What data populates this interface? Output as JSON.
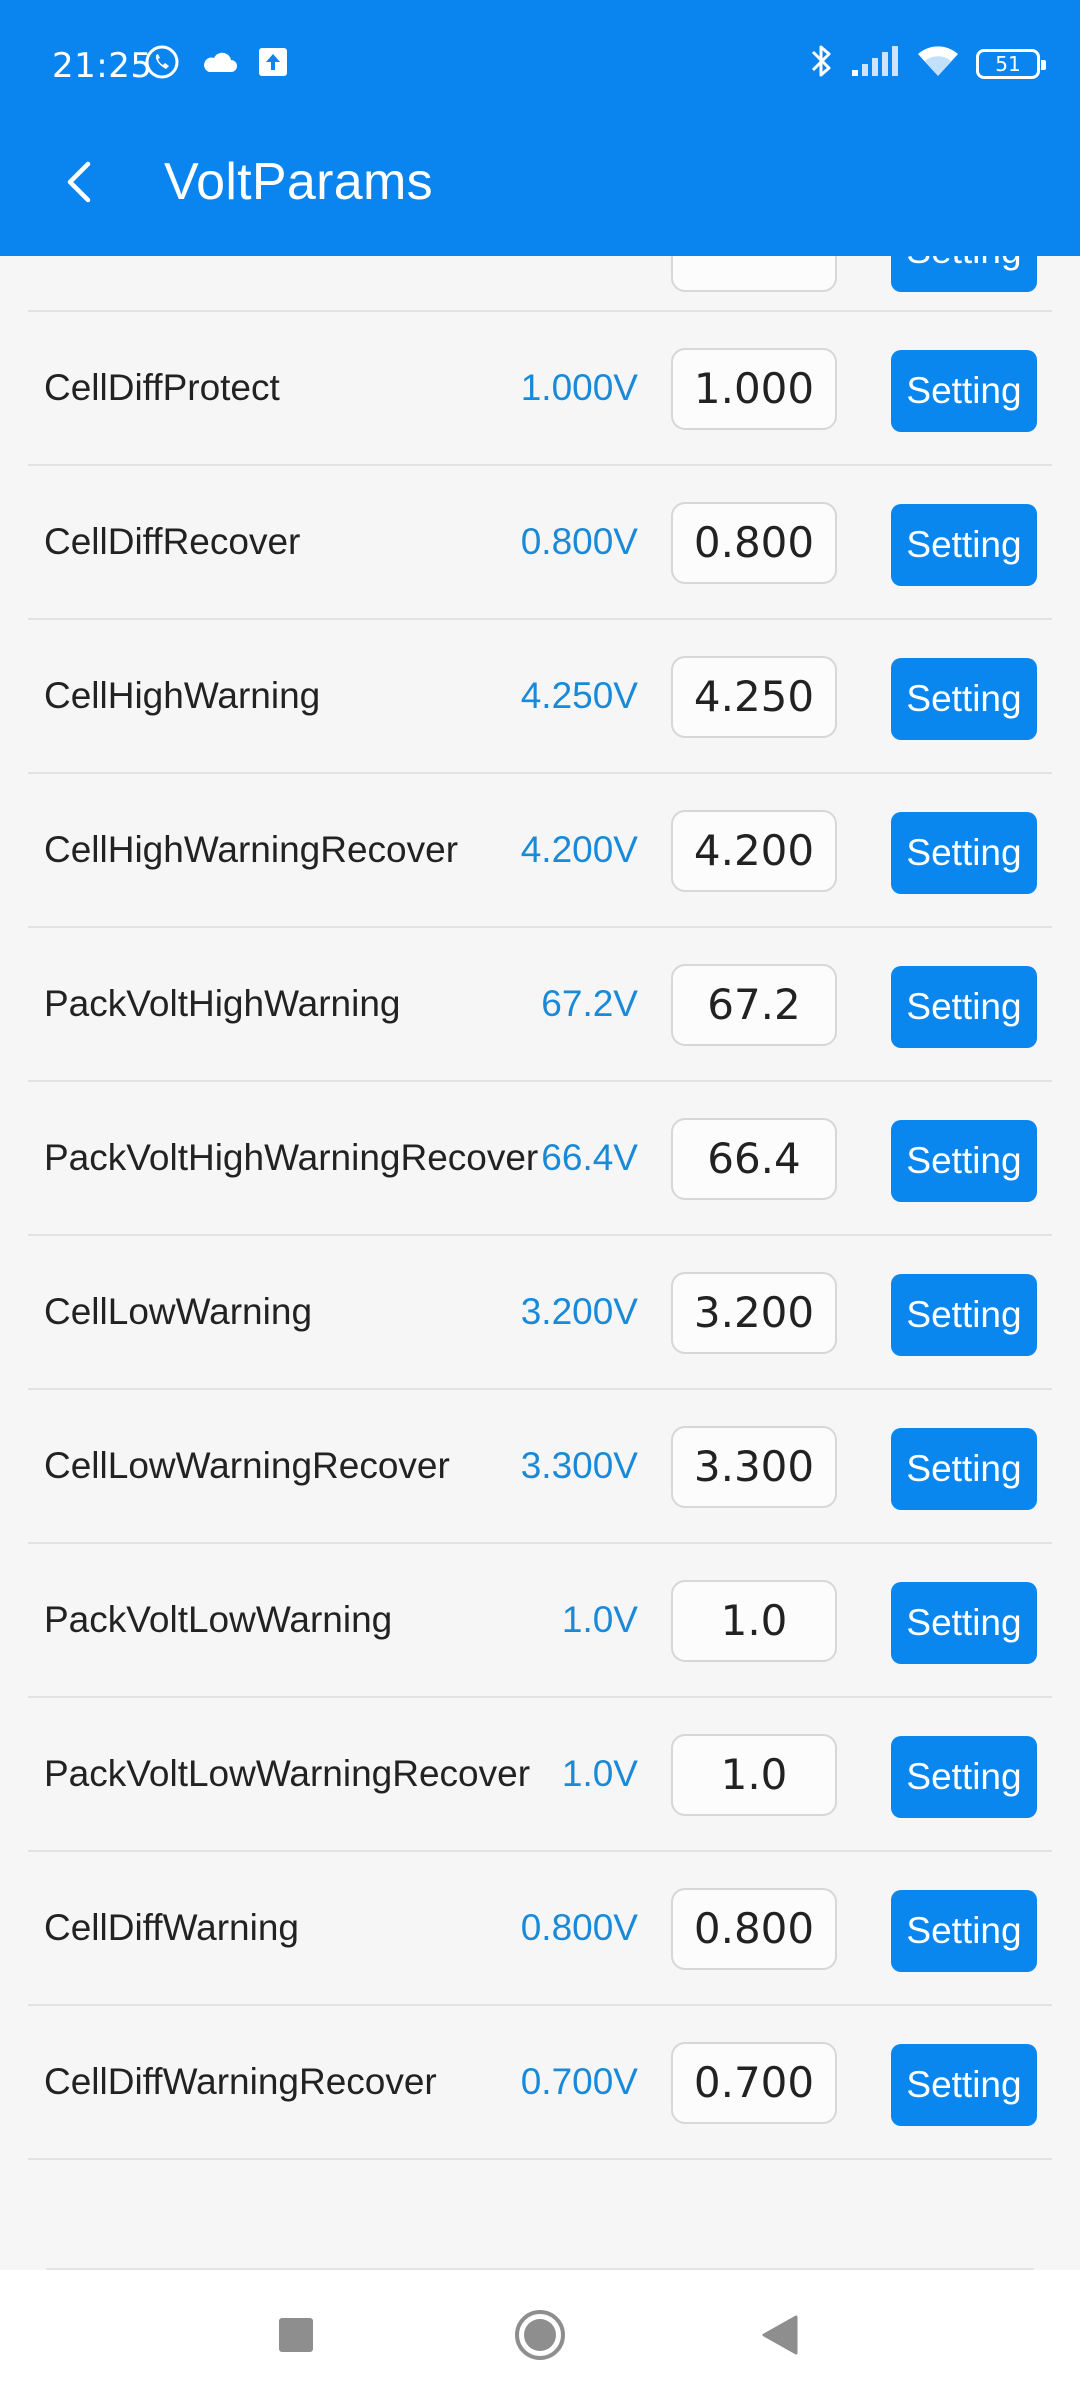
{
  "status_bar": {
    "time": "21:25",
    "left_icons": [
      "phone-call-icon",
      "cloud-icon",
      "upload-icon"
    ],
    "right_icons": [
      "bluetooth-icon",
      "signal-icon",
      "wifi-icon"
    ],
    "battery": "51"
  },
  "app_bar": {
    "title": "VoltParams"
  },
  "setting_label": "Setting",
  "partial_row": {
    "setting_label": "Setting"
  },
  "rows": [
    {
      "name": "CellDiffProtect",
      "current": "1.000V",
      "value": "1.000",
      "button": "Setting"
    },
    {
      "name": "CellDiffRecover",
      "current": "0.800V",
      "value": "0.800",
      "button": "Setting"
    },
    {
      "name": "CellHighWarning",
      "current": "4.250V",
      "value": "4.250",
      "button": "Setting"
    },
    {
      "name": "CellHighWarningRecover",
      "current": "4.200V",
      "value": "4.200",
      "button": "Setting"
    },
    {
      "name": "PackVoltHighWarning",
      "current": "67.2V",
      "value": "67.2",
      "button": "Setting"
    },
    {
      "name": "PackVoltHighWarningRecover",
      "current": "66.4V",
      "value": "66.4",
      "button": "Setting"
    },
    {
      "name": "CellLowWarning",
      "current": "3.200V",
      "value": "3.200",
      "button": "Setting"
    },
    {
      "name": "CellLowWarningRecover",
      "current": "3.300V",
      "value": "3.300",
      "button": "Setting"
    },
    {
      "name": "PackVoltLowWarning",
      "current": "1.0V",
      "value": "1.0",
      "button": "Setting"
    },
    {
      "name": "PackVoltLowWarningRecover",
      "current": "1.0V",
      "value": "1.0",
      "button": "Setting"
    },
    {
      "name": "CellDiffWarning",
      "current": "0.800V",
      "value": "0.800",
      "button": "Setting"
    },
    {
      "name": "CellDiffWarningRecover",
      "current": "0.700V",
      "value": "0.700",
      "button": "Setting"
    }
  ],
  "nav_bar": {
    "items": [
      "recents-square-icon",
      "home-circle-icon",
      "back-triangle-icon"
    ]
  },
  "colors": {
    "primary": "#0a84ef",
    "button": "#0a86ef",
    "current_value_text": "#1a8ad8",
    "background": "#f6f6f6"
  }
}
